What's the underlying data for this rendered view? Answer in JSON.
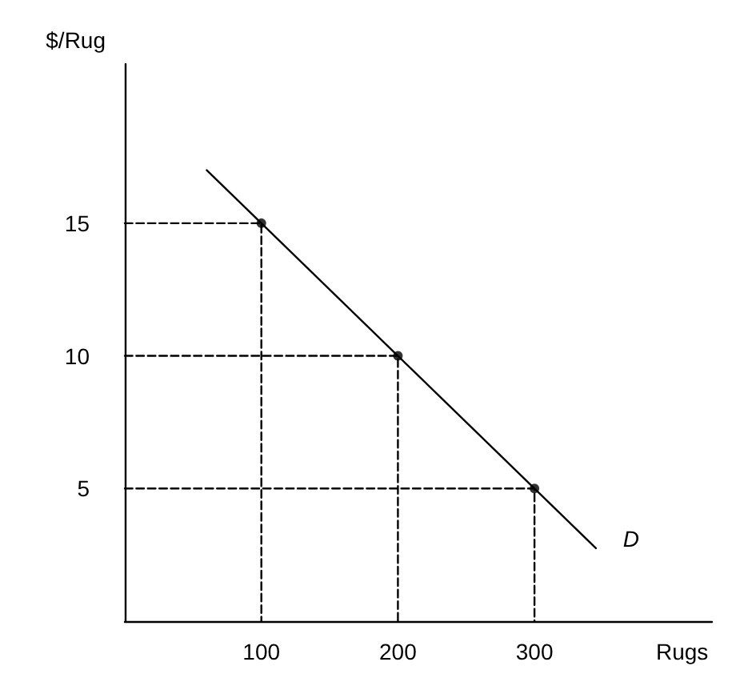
{
  "chart_data": {
    "type": "line",
    "xlabel": "Rugs",
    "ylabel": "$/Rug",
    "xlim": [
      0,
      430
    ],
    "ylim": [
      0,
      21
    ],
    "xticks": [
      100,
      200,
      300
    ],
    "yticks": [
      5,
      10,
      15
    ],
    "grid": false,
    "annotations": [
      {
        "text": "D",
        "x": 345,
        "y": 2.75
      }
    ],
    "series": [
      {
        "color": "#000000",
        "x": [
          60,
          345
        ],
        "values": [
          17,
          2.75
        ],
        "marker": "none",
        "line_style": "solid"
      },
      {
        "type": "scatter",
        "color": "#000000",
        "x": [
          100,
          200,
          300
        ],
        "values": [
          15,
          10,
          5
        ],
        "marker": "circle"
      },
      {
        "type": "line",
        "color": "#000000",
        "x": [
          0,
          100,
          100
        ],
        "values": [
          15,
          15,
          0
        ],
        "marker": "none",
        "line_style": "dashed"
      },
      {
        "type": "line",
        "color": "#000000",
        "x": [
          0,
          200,
          200
        ],
        "values": [
          10,
          10,
          0
        ],
        "marker": "none",
        "line_style": "dashed"
      },
      {
        "type": "line",
        "color": "#000000",
        "x": [
          0,
          300,
          300
        ],
        "values": [
          5,
          5,
          0
        ],
        "marker": "none",
        "line_style": "dashed"
      }
    ]
  }
}
